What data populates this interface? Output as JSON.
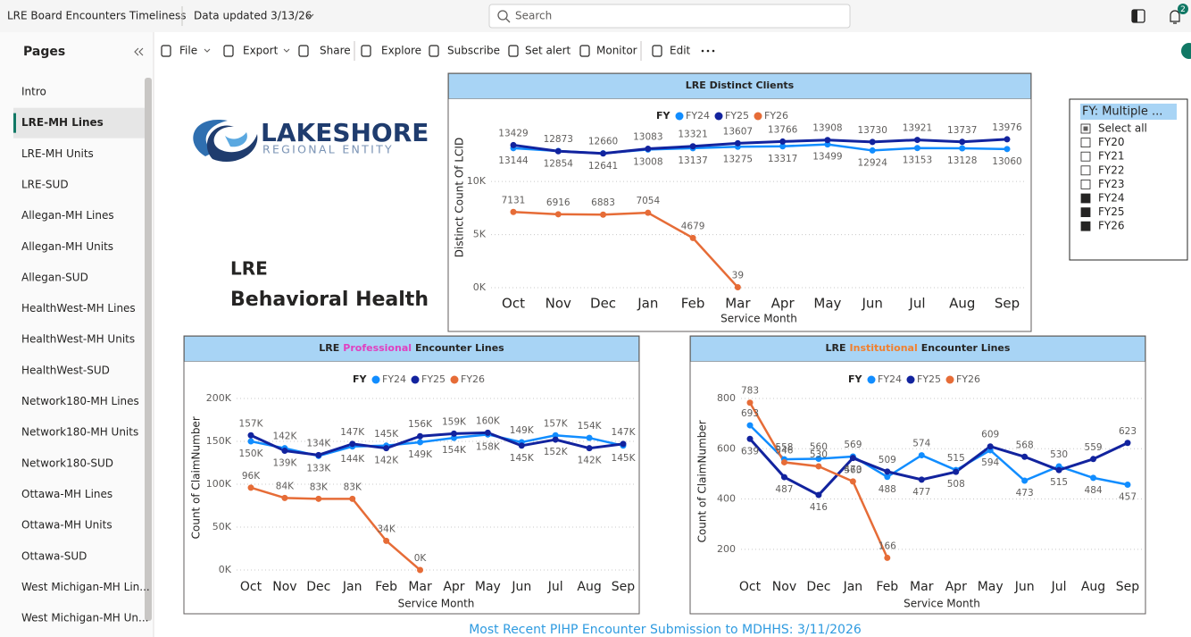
{
  "top_bar": {
    "report_title": "LRE Board Encounters Timeliness",
    "updated": "Data updated 3/13/26",
    "search": "Search",
    "notification_count": 2
  },
  "sidebar": {
    "title": "Pages",
    "active": 1,
    "pages": [
      "Intro",
      "LRE-MH Lines",
      "LRE-MH Units",
      "LRE-SUD",
      "Allegan-MH Lines",
      "Allegan-MH Units",
      "Allegan-SUD",
      "HealthWest-MH Lines",
      "HealthWest-MH Units",
      "HealthWest-SUD",
      "Network180-MH Lines",
      "Network180-MH Units",
      "Network180-SUD",
      "Ottawa-MH Lines",
      "Ottawa-MH Units",
      "Ottawa-SUD",
      "West Michigan-MH Lin...",
      "West Michigan-MH Un..."
    ]
  },
  "toolbar": [
    "File",
    "Export",
    "Share",
    "Explore",
    "Subscribe",
    "Set alert",
    "Monitor",
    "Edit"
  ],
  "logo": {
    "name": "LAKESHORE",
    "subtitle": "REGIONAL ENTITY"
  },
  "heading": {
    "line1": "LRE",
    "line2": "Behavioral Health"
  },
  "slicer": {
    "title": "FY: Multiple ...",
    "items": [
      {
        "label": "Select all",
        "state": "partial"
      },
      {
        "label": "FY20",
        "state": "unchecked"
      },
      {
        "label": "FY21",
        "state": "unchecked"
      },
      {
        "label": "FY22",
        "state": "unchecked"
      },
      {
        "label": "FY23",
        "state": "unchecked"
      },
      {
        "label": "FY24",
        "state": "checked"
      },
      {
        "label": "FY25",
        "state": "checked"
      },
      {
        "label": "FY26",
        "state": "checked"
      }
    ]
  },
  "footer": "Most Recent PIHP Encounter Submission to MDHHS: 3/11/2026",
  "chart_data": [
    {
      "type": "line",
      "title": "LRE Distinct Clients",
      "legend_title": "FY",
      "x_label": "Service Month",
      "y_label": "Distinct Count Of LCID",
      "categories": [
        "Oct",
        "Nov",
        "Dec",
        "Jan",
        "Feb",
        "Mar",
        "Apr",
        "May",
        "Jun",
        "Jul",
        "Aug",
        "Sep"
      ],
      "series": [
        {
          "name": "FY24",
          "color": "#118dff",
          "values": [
            13144,
            12873,
            12660,
            13008,
            13137,
            13275,
            13317,
            13499,
            12924,
            13153,
            13128,
            13060
          ]
        },
        {
          "name": "FY25",
          "color": "#12239e",
          "values": [
            13429,
            12854,
            12641,
            13083,
            13321,
            13607,
            13766,
            13908,
            13730,
            13921,
            13737,
            13976
          ]
        },
        {
          "name": "FY26",
          "color": "#e66c37",
          "values": [
            7131,
            6916,
            6883,
            7054,
            4679,
            39,
            null,
            null,
            null,
            null,
            null,
            null
          ]
        }
      ],
      "ylim": [
        0,
        17000
      ],
      "yticks": [
        {
          "value": 0,
          "label": "0K"
        },
        {
          "value": 5000,
          "label": "5K"
        },
        {
          "value": 10000,
          "label": "10K"
        }
      ],
      "grid": true
    },
    {
      "type": "line",
      "title": {
        "prefix": "LRE",
        "highlight": "Professional",
        "highlight_color": "#e040c0",
        "suffix": "Encounter Lines"
      },
      "legend_title": "FY",
      "x_label": "Service Month",
      "y_label": "Count of ClaimNumber",
      "categories": [
        "Oct",
        "Nov",
        "Dec",
        "Jan",
        "Feb",
        "Mar",
        "Apr",
        "May",
        "Jun",
        "Jul",
        "Aug",
        "Sep"
      ],
      "series": [
        {
          "name": "FY24",
          "color": "#118dff",
          "values": [
            150000,
            142000,
            133000,
            144000,
            145000,
            149000,
            154000,
            158000,
            149000,
            157000,
            154000,
            145000
          ],
          "value_labels": [
            "150K",
            "142K",
            "133K",
            "144K",
            "145K",
            "149K",
            "154K",
            "158K",
            "149K",
            "157K",
            "154K",
            "145K"
          ]
        },
        {
          "name": "FY25",
          "color": "#12239e",
          "values": [
            157000,
            139000,
            134000,
            147000,
            142000,
            156000,
            159000,
            160000,
            145000,
            152000,
            142000,
            147000
          ],
          "value_labels": [
            "157K",
            "139K",
            "134K",
            "147K",
            "142K",
            "156K",
            "159K",
            "160K",
            "145K",
            "152K",
            "142K",
            "147K"
          ]
        },
        {
          "name": "FY26",
          "color": "#e66c37",
          "values": [
            96000,
            84000,
            83000,
            83000,
            34000,
            0,
            null,
            null,
            null,
            null,
            null,
            null
          ],
          "value_labels": [
            "96K",
            "84K",
            "83K",
            "83K",
            "34K",
            "0K",
            null,
            null,
            null,
            null,
            null,
            null
          ]
        }
      ],
      "ylim": [
        0,
        215000
      ],
      "yticks": [
        {
          "value": 0,
          "label": "0K"
        },
        {
          "value": 50000,
          "label": "50K"
        },
        {
          "value": 100000,
          "label": "100K"
        },
        {
          "value": 150000,
          "label": "150K"
        },
        {
          "value": 200000,
          "label": "200K"
        }
      ],
      "grid": true
    },
    {
      "type": "line",
      "title": {
        "prefix": "LRE",
        "highlight": "Institutional",
        "highlight_color": "#f08030",
        "suffix": "Encounter Lines"
      },
      "legend_title": "FY",
      "x_label": "Service Month",
      "y_label": "Count of ClaimNumber",
      "categories": [
        "Oct",
        "Nov",
        "Dec",
        "Jan",
        "Feb",
        "Mar",
        "Apr",
        "May",
        "Jun",
        "Jul",
        "Aug",
        "Sep"
      ],
      "series": [
        {
          "name": "FY24",
          "color": "#118dff",
          "values": [
            693,
            558,
            560,
            569,
            488,
            574,
            515,
            594,
            473,
            530,
            484,
            457
          ]
        },
        {
          "name": "FY25",
          "color": "#12239e",
          "values": [
            639,
            487,
            416,
            563,
            509,
            477,
            508,
            609,
            568,
            515,
            559,
            623
          ]
        },
        {
          "name": "FY26",
          "color": "#e66c37",
          "values": [
            783,
            546,
            530,
            470,
            166,
            null,
            null,
            null,
            null,
            null,
            null,
            null
          ]
        }
      ],
      "ylim": [
        100,
        840
      ],
      "yticks": [
        200,
        400,
        600,
        800
      ],
      "grid": true
    }
  ]
}
